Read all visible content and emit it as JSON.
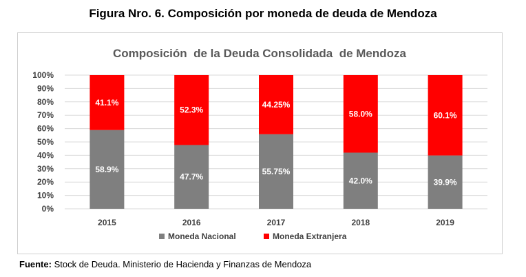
{
  "figure_title": "Figura Nro. 6. Composición por moneda de deuda de Mendoza",
  "footer": {
    "label": "Fuente:",
    "text": " Stock de Deuda. Ministerio de Hacienda y Finanzas de Mendoza"
  },
  "chart_data": {
    "type": "bar",
    "stacked": true,
    "title": "Composición  de la Deuda Consolidada  de Mendoza",
    "categories": [
      "2015",
      "2016",
      "2017",
      "2018",
      "2019"
    ],
    "ylim": [
      0,
      100
    ],
    "yticks": [
      "0%",
      "10%",
      "20%",
      "30%",
      "40%",
      "50%",
      "60%",
      "70%",
      "80%",
      "90%",
      "100%"
    ],
    "grid": true,
    "legend_position": "bottom",
    "series": [
      {
        "name": "Moneda Nacional",
        "color": "#7f7f7f",
        "values": [
          58.9,
          47.7,
          55.75,
          42.0,
          39.9
        ],
        "labels": [
          "58.9%",
          "47.7%",
          "55.75%",
          "42.0%",
          "39.9%"
        ]
      },
      {
        "name": "Moneda Extranjera",
        "color": "#ff0000",
        "values": [
          41.1,
          52.3,
          44.25,
          58.0,
          60.1
        ],
        "labels": [
          "41.1%",
          "52.3%",
          "44.25%",
          "58.0%",
          "60.1%"
        ]
      }
    ]
  }
}
